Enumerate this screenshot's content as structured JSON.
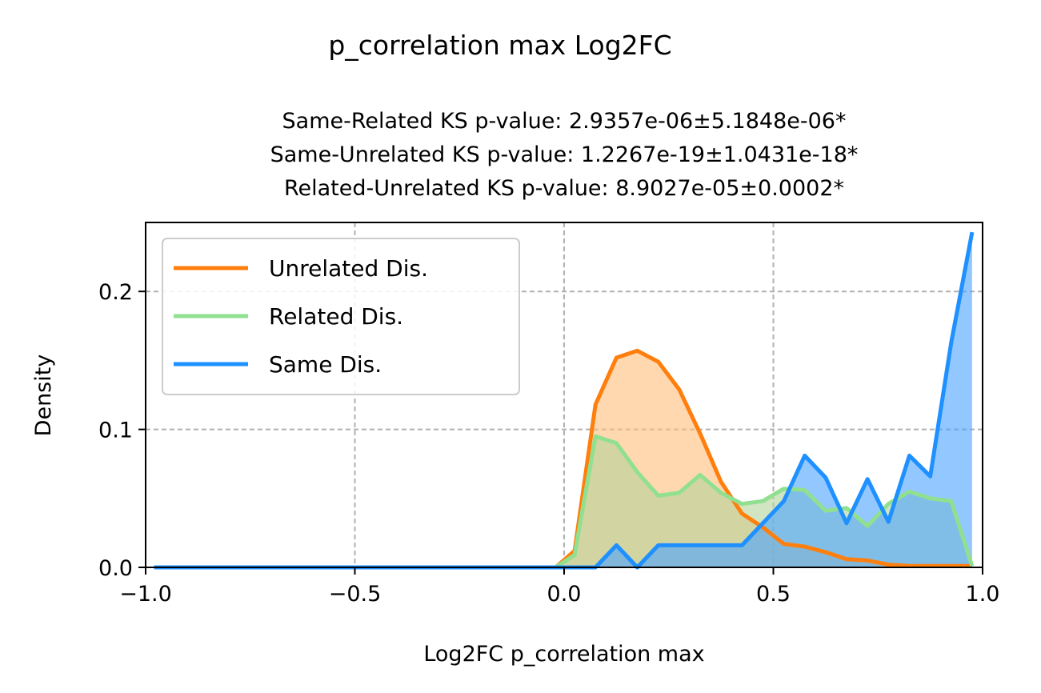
{
  "suptitle": "p_correlation max Log2FC",
  "subtitle": {
    "line1": "Same-Related KS p-value: 2.9357e-06±5.1848e-06*",
    "line2": "Same-Unrelated KS p-value: 1.2267e-19±1.0431e-18*",
    "line3": "Related-Unrelated KS p-value: 8.9027e-05±0.0002*"
  },
  "chart_data": {
    "type": "area",
    "xlabel": "Log2FC p_correlation max",
    "ylabel": "Density",
    "xlim": [
      -1.0,
      1.0
    ],
    "ylim": [
      0.0,
      0.25
    ],
    "xticks": [
      -1.0,
      -0.5,
      0.0,
      0.5,
      1.0
    ],
    "xtick_labels": [
      "−1.0",
      "−0.5",
      "0.0",
      "0.5",
      "1.0"
    ],
    "yticks": [
      0.0,
      0.1,
      0.2
    ],
    "ytick_labels": [
      "0.0",
      "0.1",
      "0.2"
    ],
    "grid": true,
    "legend_position": "upper-left",
    "series": [
      {
        "name": "Unrelated Dis.",
        "color": "#ff7f0e",
        "fill": "#ffbe7a",
        "points": [
          [
            -0.98,
            0.0
          ],
          [
            -0.5,
            0.0
          ],
          [
            -0.02,
            0.0
          ],
          [
            0.025,
            0.012
          ],
          [
            0.075,
            0.118
          ],
          [
            0.125,
            0.152
          ],
          [
            0.175,
            0.157
          ],
          [
            0.225,
            0.149
          ],
          [
            0.275,
            0.129
          ],
          [
            0.325,
            0.097
          ],
          [
            0.375,
            0.062
          ],
          [
            0.425,
            0.039
          ],
          [
            0.475,
            0.029
          ],
          [
            0.525,
            0.017
          ],
          [
            0.575,
            0.015
          ],
          [
            0.625,
            0.011
          ],
          [
            0.675,
            0.006
          ],
          [
            0.725,
            0.005
          ],
          [
            0.775,
            0.002
          ],
          [
            0.825,
            0.001
          ],
          [
            0.875,
            0.001
          ],
          [
            0.925,
            0.001
          ],
          [
            0.975,
            0.001
          ]
        ]
      },
      {
        "name": "Related Dis.",
        "color": "#90e090",
        "fill": "#b4d49a",
        "points": [
          [
            -0.98,
            0.0
          ],
          [
            -0.5,
            0.0
          ],
          [
            -0.02,
            0.0
          ],
          [
            0.025,
            0.009
          ],
          [
            0.075,
            0.095
          ],
          [
            0.125,
            0.09
          ],
          [
            0.175,
            0.069
          ],
          [
            0.225,
            0.052
          ],
          [
            0.275,
            0.054
          ],
          [
            0.325,
            0.067
          ],
          [
            0.375,
            0.054
          ],
          [
            0.425,
            0.046
          ],
          [
            0.475,
            0.048
          ],
          [
            0.525,
            0.057
          ],
          [
            0.575,
            0.056
          ],
          [
            0.625,
            0.041
          ],
          [
            0.675,
            0.043
          ],
          [
            0.725,
            0.03
          ],
          [
            0.775,
            0.046
          ],
          [
            0.825,
            0.055
          ],
          [
            0.875,
            0.05
          ],
          [
            0.925,
            0.048
          ],
          [
            0.975,
            0.001
          ]
        ]
      },
      {
        "name": "Same Dis.",
        "color": "#1e90ff",
        "fill": "#4aa3ff",
        "points": [
          [
            -0.98,
            0.0
          ],
          [
            -0.5,
            0.0
          ],
          [
            0.0,
            0.0
          ],
          [
            0.075,
            0.0
          ],
          [
            0.125,
            0.016
          ],
          [
            0.175,
            0.0
          ],
          [
            0.225,
            0.016
          ],
          [
            0.275,
            0.016
          ],
          [
            0.325,
            0.016
          ],
          [
            0.375,
            0.016
          ],
          [
            0.425,
            0.016
          ],
          [
            0.475,
            0.032
          ],
          [
            0.525,
            0.048
          ],
          [
            0.575,
            0.081
          ],
          [
            0.625,
            0.065
          ],
          [
            0.675,
            0.032
          ],
          [
            0.725,
            0.064
          ],
          [
            0.775,
            0.033
          ],
          [
            0.825,
            0.081
          ],
          [
            0.875,
            0.066
          ],
          [
            0.925,
            0.163
          ],
          [
            0.975,
            0.243
          ]
        ]
      }
    ]
  }
}
